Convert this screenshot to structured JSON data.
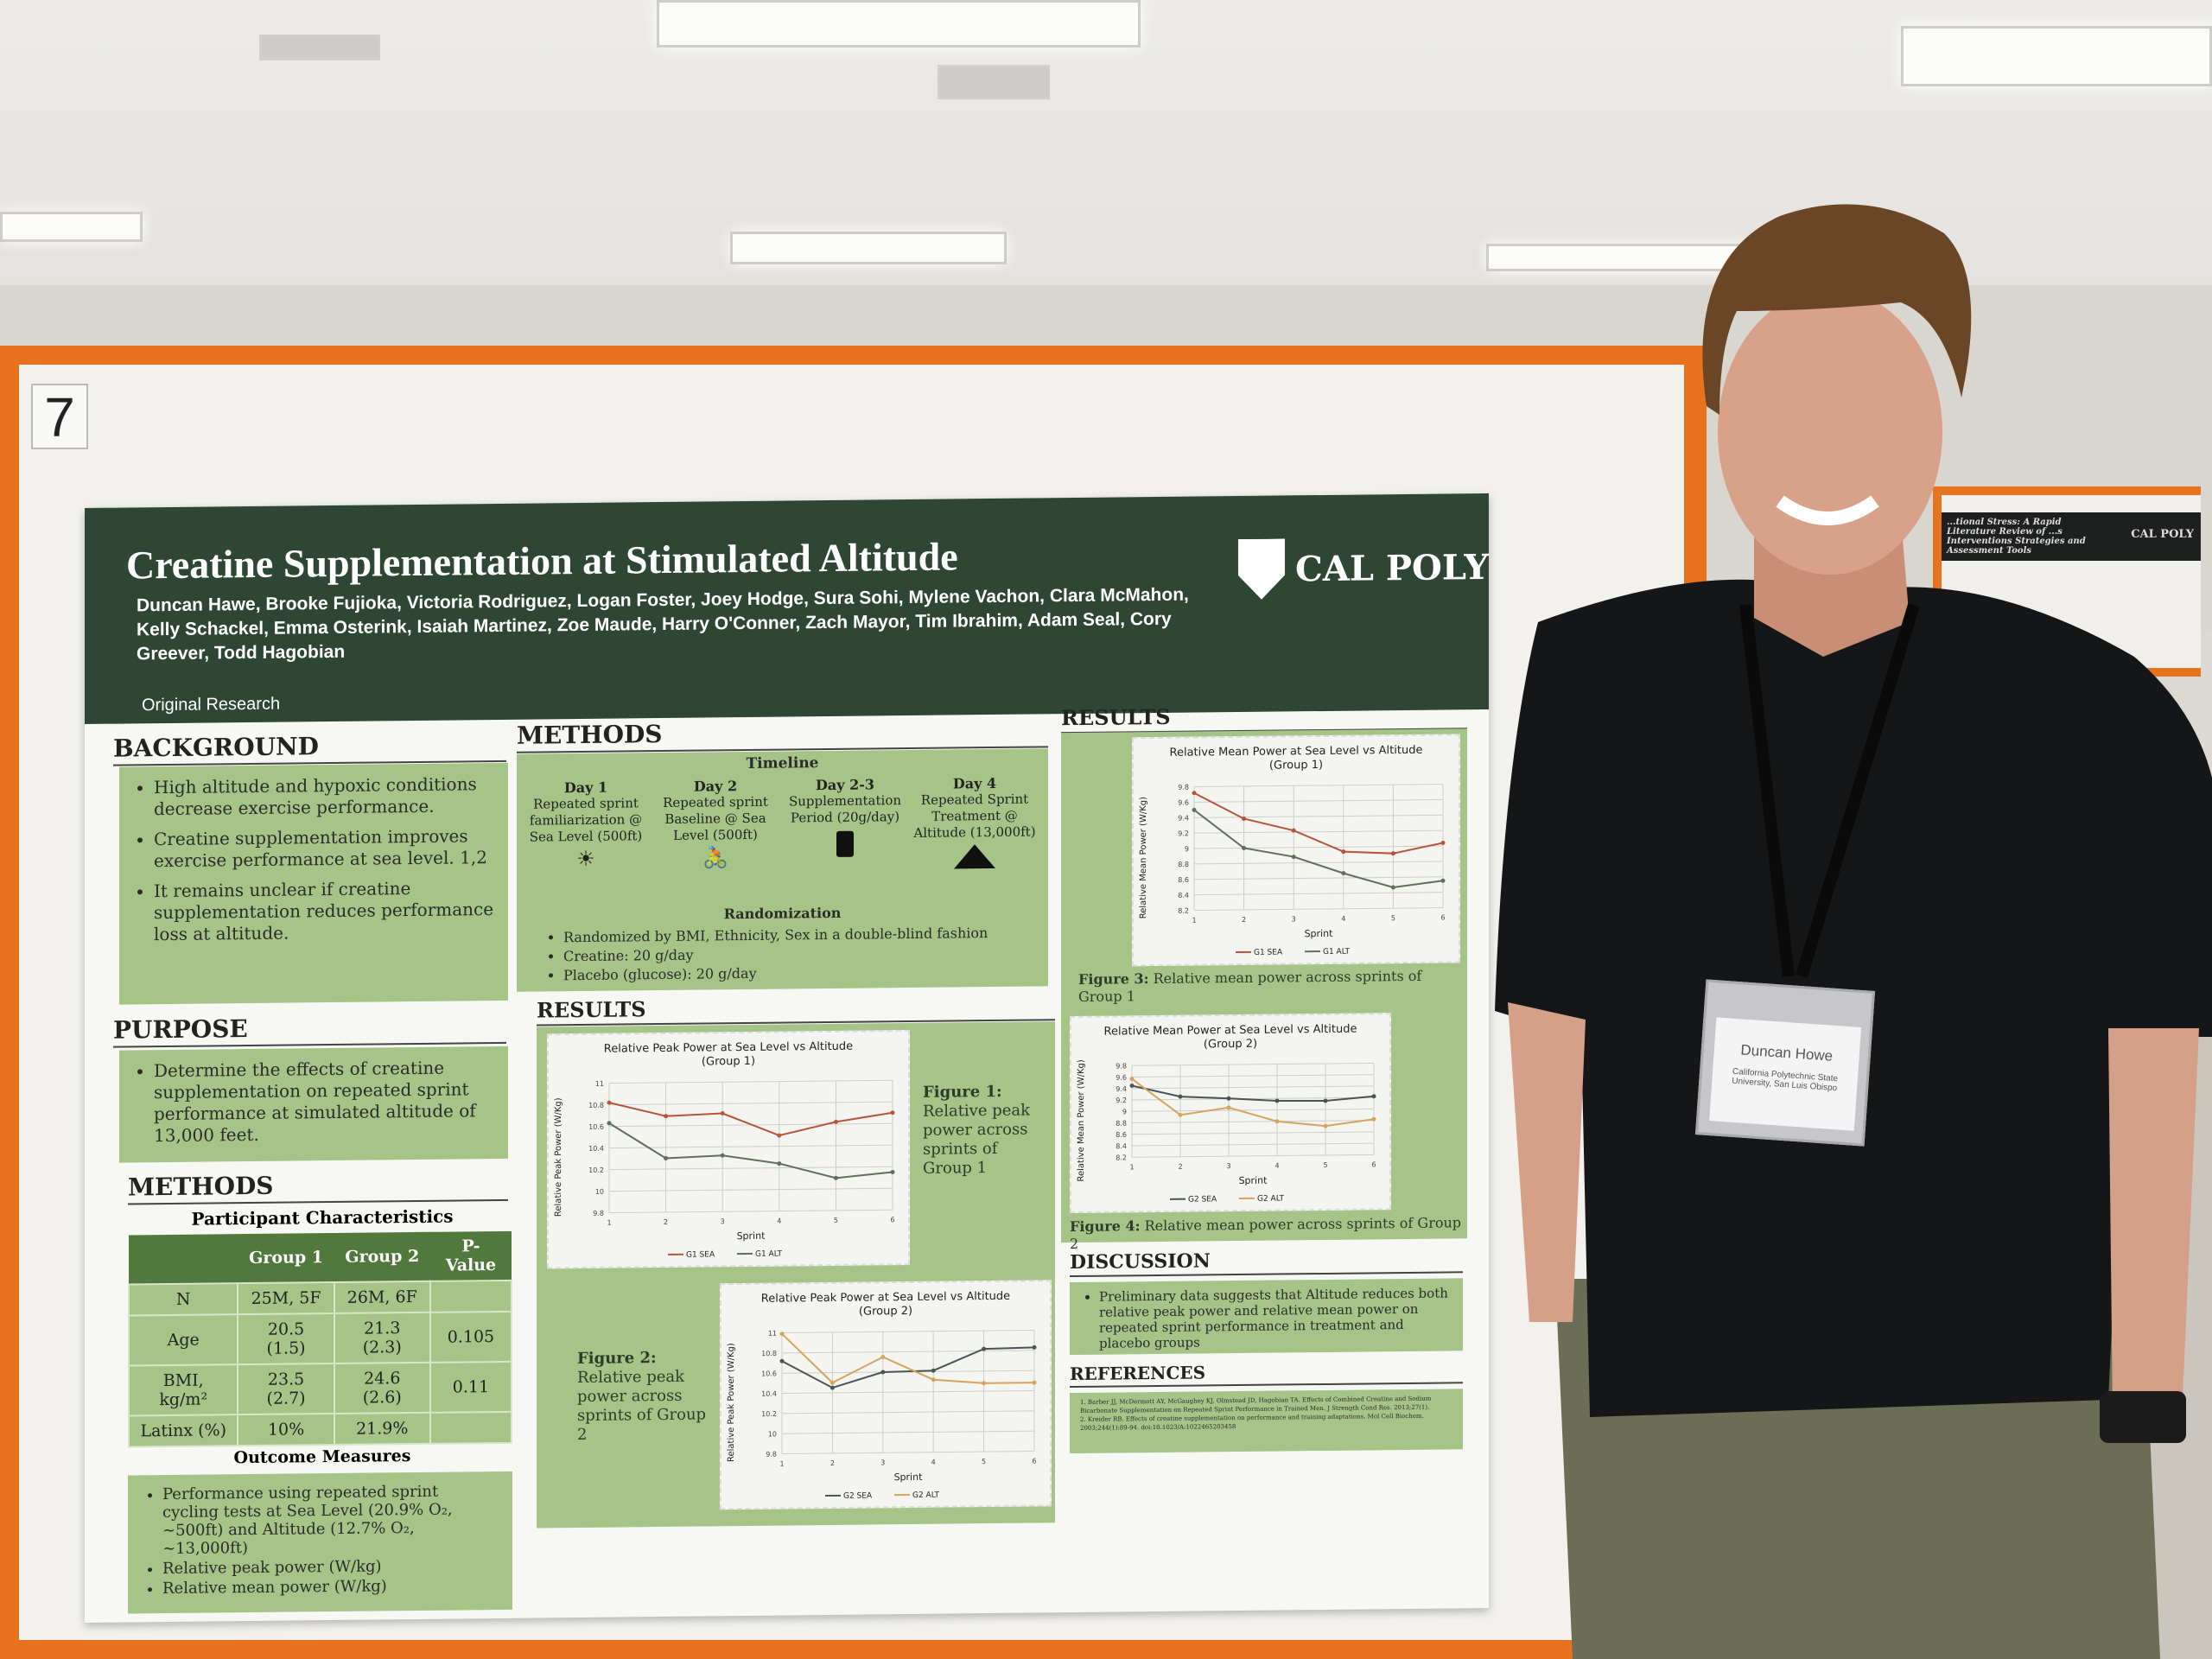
{
  "board_number": "7",
  "poster": {
    "title": "Creatine Supplementation at Stimulated Altitude",
    "authors": "Duncan Hawe, Brooke Fujioka, Victoria Rodriguez, Logan Foster, Joey Hodge, Sura Sohi, Mylene Vachon, Clara McMahon, Kelly Schackel, Emma Osterink, Isaiah Martinez, Zoe Maude, Harry O'Conner, Zach Mayor, Tim Ibrahim, Adam Seal, Cory Greever, Todd Hagobian",
    "type": "Original Research",
    "logo": "CAL POLY",
    "background": {
      "heading": "BACKGROUND",
      "items": [
        "High altitude and hypoxic conditions decrease exercise performance.",
        "Creatine supplementation improves exercise performance at sea level. 1,2",
        "It remains unclear if creatine supplementation reduces performance loss at altitude."
      ]
    },
    "purpose": {
      "heading": "PURPOSE",
      "items": [
        "Determine the effects of creatine supplementation on repeated sprint performance at simulated altitude of 13,000 feet."
      ]
    },
    "methods_left": {
      "heading": "METHODS",
      "table_title": "Participant Characteristics",
      "columns": [
        "",
        "Group 1",
        "Group 2",
        "P-Value"
      ],
      "rows": [
        [
          "N",
          "25M, 5F",
          "26M, 6F",
          ""
        ],
        [
          "Age",
          "20.5 (1.5)",
          "21.3 (2.3)",
          "0.105"
        ],
        [
          "BMI, kg/m²",
          "23.5 (2.7)",
          "24.6 (2.6)",
          "0.11"
        ],
        [
          "Latinx (%)",
          "10%",
          "21.9%",
          ""
        ]
      ],
      "outcome_title": "Outcome Measures",
      "outcomes": [
        "Performance using repeated sprint cycling tests at Sea Level (20.9% O₂, ~500ft) and Altitude (12.7% O₂, ~13,000ft)",
        "Relative peak power (W/kg)",
        "Relative mean power (W/kg)"
      ]
    },
    "methods_mid": {
      "heading": "METHODS",
      "timeline_title": "Timeline",
      "steps": [
        {
          "day": "Day 1",
          "text": "Repeated sprint familiarization @ Sea Level (500ft)",
          "icon": "sunrise-icon"
        },
        {
          "day": "Day 2",
          "text": "Repeated sprint Baseline @ Sea Level (500ft)",
          "icon": "cyclist-icon"
        },
        {
          "day": "Day 2-3",
          "text": "Supplementation Period (20g/day)",
          "icon": "supplement-bottle-icon"
        },
        {
          "day": "Day 4",
          "text": "Repeated Sprint Treatment @ Altitude (13,000ft)",
          "icon": "mountain-icon"
        }
      ],
      "randomization": "Randomization",
      "items": [
        "Randomized by BMI, Ethnicity, Sex in a double-blind fashion",
        "Creatine: 20 g/day",
        "Placebo (glucose): 20 g/day"
      ]
    },
    "results_heading": "RESULTS",
    "figures": [
      {
        "title": "Relative Peak Power at Sea Level vs Altitude",
        "subtitle": "(Group 1)",
        "ylabel": "Relative Peak Power (W/Kg)",
        "xlabel": "Sprint",
        "x": [
          1,
          2,
          3,
          4,
          5,
          6
        ],
        "ylim": [
          9.8,
          11
        ],
        "yticks": [
          "9.8",
          "10",
          "10.2",
          "10.4",
          "10.6",
          "10.8",
          "11"
        ],
        "series": [
          {
            "name": "G1 SEA",
            "color": "#b5553a",
            "values": [
              10.82,
              10.69,
              10.71,
              10.5,
              10.62,
              10.7
            ]
          },
          {
            "name": "G1 ALT",
            "color": "#5f6f5c",
            "values": [
              10.63,
              10.3,
              10.32,
              10.24,
              10.1,
              10.15
            ]
          }
        ],
        "caption_label": "Figure 1:",
        "caption": "Relative peak power across sprints of Group 1"
      },
      {
        "title": "Relative Peak Power at Sea Level vs Altitude",
        "subtitle": "(Group 2)",
        "ylabel": "Relative Peak Power (W/Kg)",
        "xlabel": "Sprint",
        "x": [
          1,
          2,
          3,
          4,
          5,
          6
        ],
        "ylim": [
          9.8,
          11
        ],
        "yticks": [
          "9.8",
          "10",
          "10.2",
          "10.4",
          "10.6",
          "10.8",
          "11"
        ],
        "series": [
          {
            "name": "G2 SEA",
            "color": "#4a5458",
            "values": [
              10.72,
              10.45,
              10.6,
              10.61,
              10.82,
              10.83
            ]
          },
          {
            "name": "G2 ALT",
            "color": "#d4a55a",
            "values": [
              10.99,
              10.5,
              10.75,
              10.52,
              10.48,
              10.48
            ]
          }
        ],
        "caption_label": "Figure 2:",
        "caption": "Relative peak power across sprints of Group 2"
      },
      {
        "title": "Relative Mean Power at Sea Level vs Altitude",
        "subtitle": "(Group 1)",
        "ylabel": "Relative Mean Power (W/Kg)",
        "xlabel": "Sprint",
        "x": [
          1,
          2,
          3,
          4,
          5,
          6
        ],
        "ylim": [
          8.2,
          9.8
        ],
        "yticks": [
          "8.2",
          "8.4",
          "8.6",
          "8.8",
          "9",
          "9.2",
          "9.4",
          "9.6",
          "9.8"
        ],
        "series": [
          {
            "name": "G1 SEA",
            "color": "#b5553a",
            "values": [
              9.72,
              9.38,
              9.22,
              8.94,
              8.91,
              9.04
            ]
          },
          {
            "name": "G1 ALT",
            "color": "#5f6f5c",
            "values": [
              9.5,
              9.0,
              8.88,
              8.66,
              8.47,
              8.55
            ]
          }
        ],
        "caption_label": "Figure 3:",
        "caption": "Relative mean power across sprints of Group 1"
      },
      {
        "title": "Relative Mean Power at Sea Level vs Altitude",
        "subtitle": "(Group 2)",
        "ylabel": "Relative Mean Power (W/Kg)",
        "xlabel": "Sprint",
        "x": [
          1,
          2,
          3,
          4,
          5,
          6
        ],
        "ylim": [
          8.2,
          9.8
        ],
        "yticks": [
          "8.2",
          "8.4",
          "8.6",
          "8.8",
          "9",
          "9.2",
          "9.4",
          "9.6",
          "9.8"
        ],
        "series": [
          {
            "name": "G2 SEA",
            "color": "#4a5458",
            "values": [
              9.45,
              9.25,
              9.21,
              9.16,
              9.15,
              9.22
            ]
          },
          {
            "name": "G2 ALT",
            "color": "#d4a55a",
            "values": [
              9.57,
              8.93,
              9.05,
              8.8,
              8.71,
              8.82
            ]
          }
        ],
        "caption_label": "Figure 4:",
        "caption": "Relative mean power across sprints of Group 2"
      }
    ],
    "discussion": {
      "heading": "DISCUSSION",
      "items": [
        "Preliminary data suggests that Altitude reduces both relative peak power and relative mean power on repeated sprint performance in treatment and placebo groups"
      ]
    },
    "references": {
      "heading": "REFERENCES",
      "items": [
        "1. Barber JJ, McDermott AY, McGaughey KJ, Olmstead JD, Hagobian TA. Effects of Combined Creatine and Sodium Bicarbonate Supplementation on Repeated Sprint Performance in Trained Men. J Strength Cond Res. 2013;27(1).",
        "2. Kreider RB. Effects of creatine supplementation on performance and training adaptations. Mol Cell Biochem. 2003;244(1):89-94. doi:10.1023/A:1022465203458"
      ]
    }
  },
  "badge": {
    "name": "Duncan Howe",
    "affiliation": "California Polytechnic State University, San Luis Obispo"
  },
  "neighbor_poster": {
    "title": "...tional Stress: A Rapid Literature Review of ...s Interventions Strategies and Assessment Tools",
    "logo": "CAL POLY"
  }
}
